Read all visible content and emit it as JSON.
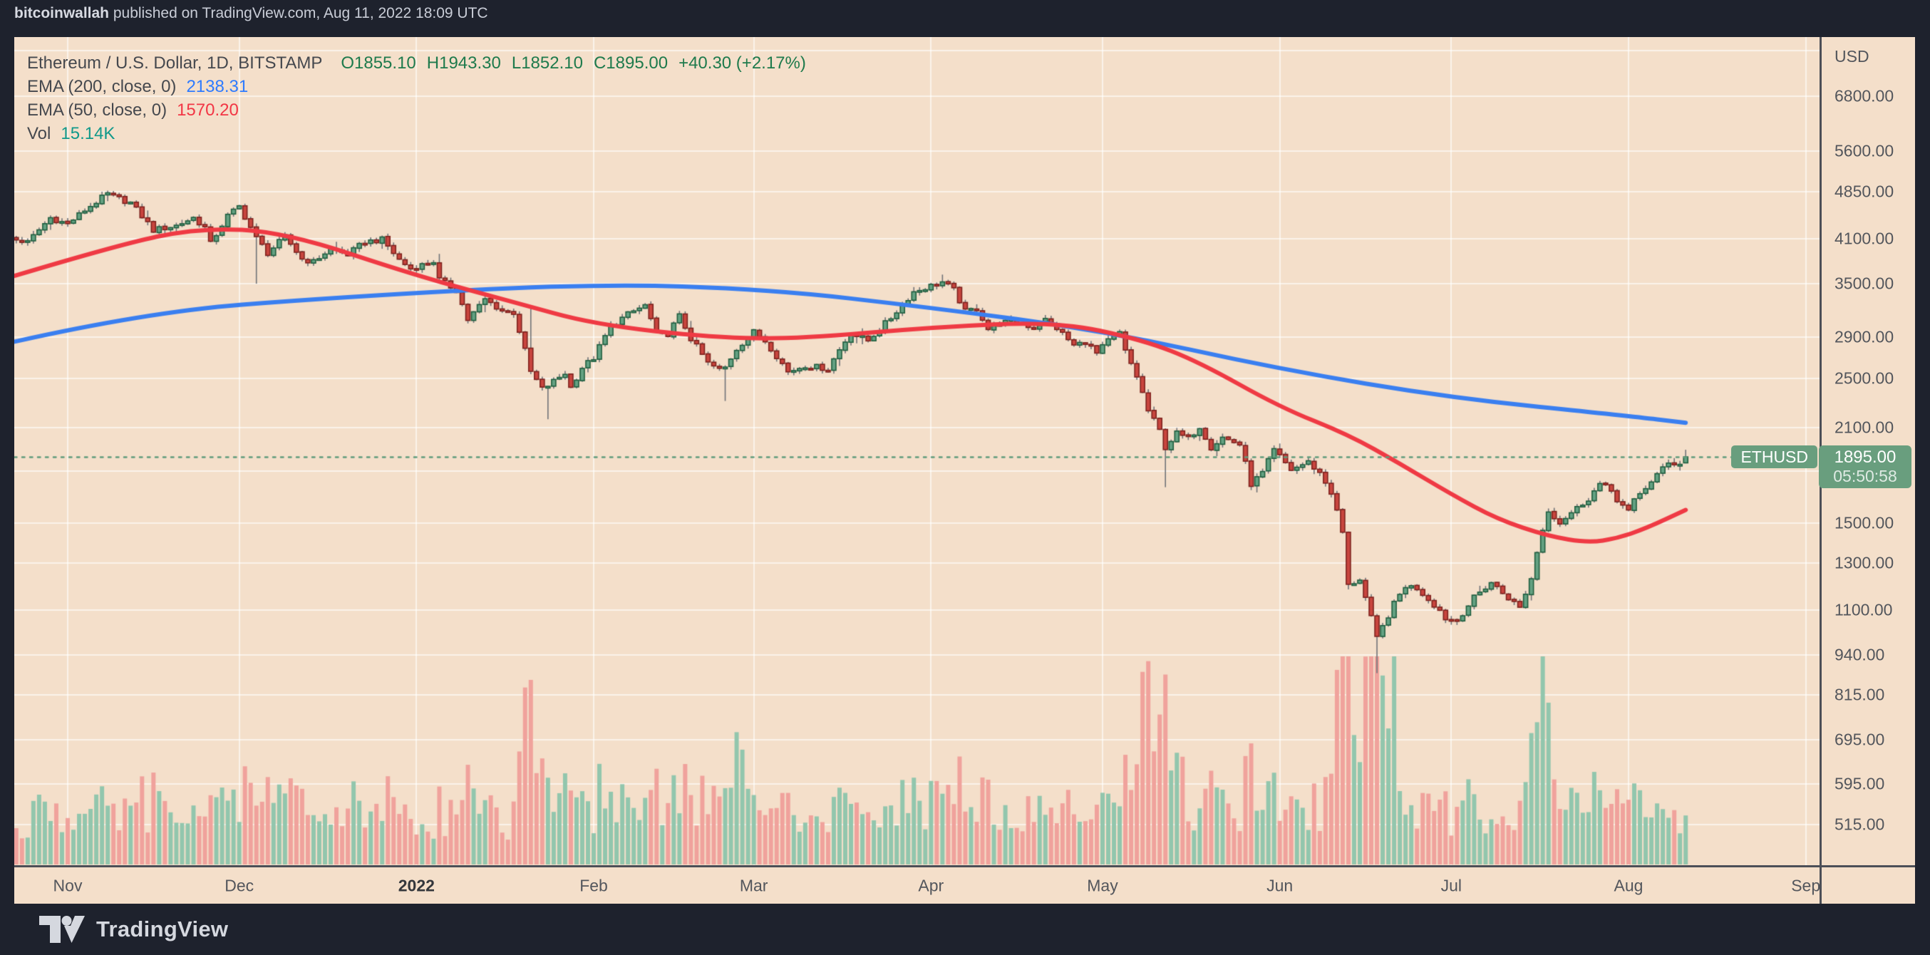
{
  "header": {
    "username": "bitcoinwallah",
    "published_text": " published on TradingView.com, Aug 11, 2022 18:09 UTC"
  },
  "footer": {
    "brand": "TradingView"
  },
  "legend": {
    "title": "Ethereum / U.S. Dollar, 1D, BITSTAMP",
    "ohlc": {
      "o": "O1855.10",
      "h": "H1943.30",
      "l": "L1852.10",
      "c": "C1895.00",
      "chg": "+40.30 (+2.17%)"
    },
    "ema200_label": "EMA (200, close, 0)",
    "ema200_value": "2138.31",
    "ema50_label": "EMA (50, close, 0)",
    "ema50_value": "1570.20",
    "vol_label": "Vol",
    "vol_value": "15.14K"
  },
  "symbol_badge": "ETHUSD",
  "price_scale": {
    "currency": "USD",
    "badge_price": "1895.00",
    "badge_countdown": "05:50:58",
    "ticks": [
      {
        "label": "6800.00",
        "value": 6800
      },
      {
        "label": "5600.00",
        "value": 5600
      },
      {
        "label": "4850.00",
        "value": 4850
      },
      {
        "label": "4100.00",
        "value": 4100
      },
      {
        "label": "3500.00",
        "value": 3500
      },
      {
        "label": "2900.00",
        "value": 2900
      },
      {
        "label": "2500.00",
        "value": 2500
      },
      {
        "label": "2100.00",
        "value": 2100
      },
      {
        "label": "1500.00",
        "value": 1500
      },
      {
        "label": "1300.00",
        "value": 1300
      },
      {
        "label": "1100.00",
        "value": 1100
      },
      {
        "label": "940.00",
        "value": 940
      },
      {
        "label": "815.00",
        "value": 815
      },
      {
        "label": "695.00",
        "value": 695
      },
      {
        "label": "595.00",
        "value": 595
      },
      {
        "label": "515.00",
        "value": 515
      }
    ],
    "unlabeled_gridlines": [
      8000,
      1800
    ]
  },
  "time_scale": {
    "labels": [
      {
        "text": "Nov",
        "day": 12
      },
      {
        "text": "Dec",
        "day": 42
      },
      {
        "text": "2022",
        "day": 73,
        "bold": true
      },
      {
        "text": "Feb",
        "day": 104
      },
      {
        "text": "Mar",
        "day": 132
      },
      {
        "text": "Apr",
        "day": 163
      },
      {
        "text": "May",
        "day": 193
      },
      {
        "text": "Jun",
        "day": 224
      },
      {
        "text": "Jul",
        "day": 254
      },
      {
        "text": "Aug",
        "day": 285
      },
      {
        "text": "Sep",
        "day": 316
      }
    ]
  },
  "chart_data": {
    "type": "candlestick",
    "symbol": "ETHUSD",
    "exchange": "BITSTAMP",
    "timeframe": "1D",
    "title": "Ethereum / U.S. Dollar",
    "log_scale": true,
    "num_days": 296,
    "start_date": "2021-10-20",
    "end_date": "2022-08-11",
    "current": {
      "open": 1855.1,
      "high": 1943.3,
      "low": 1852.1,
      "close": 1895.0,
      "change": 40.3,
      "change_pct": 2.17,
      "volume_display": "15.14K",
      "ema200": 2138.31,
      "ema50": 1570.2,
      "countdown": "05:50:58"
    },
    "close_keypoints": [
      [
        0,
        4170
      ],
      [
        3,
        4090
      ],
      [
        5,
        4050
      ],
      [
        9,
        4420
      ],
      [
        12,
        4320
      ],
      [
        15,
        4540
      ],
      [
        19,
        4810
      ],
      [
        21,
        4730
      ],
      [
        23,
        4660
      ],
      [
        27,
        4230
      ],
      [
        31,
        4300
      ],
      [
        34,
        4420
      ],
      [
        36,
        4270
      ],
      [
        37,
        4030
      ],
      [
        40,
        4450
      ],
      [
        42,
        4600
      ],
      [
        45,
        4110
      ],
      [
        47,
        3900
      ],
      [
        50,
        4130
      ],
      [
        53,
        3820
      ],
      [
        55,
        3780
      ],
      [
        58,
        3960
      ],
      [
        61,
        3880
      ],
      [
        64,
        4060
      ],
      [
        67,
        4090
      ],
      [
        70,
        3810
      ],
      [
        72,
        3690
      ],
      [
        76,
        3790
      ],
      [
        77,
        3550
      ],
      [
        80,
        3420
      ],
      [
        82,
        3080
      ],
      [
        85,
        3310
      ],
      [
        88,
        3180
      ],
      [
        90,
        3160
      ],
      [
        93,
        2560
      ],
      [
        95,
        2410
      ],
      [
        96,
        2440
      ],
      [
        99,
        2550
      ],
      [
        100,
        2420
      ],
      [
        102,
        2600
      ],
      [
        104,
        2690
      ],
      [
        107,
        3010
      ],
      [
        110,
        3140
      ],
      [
        113,
        3240
      ],
      [
        115,
        2930
      ],
      [
        117,
        2930
      ],
      [
        119,
        3120
      ],
      [
        121,
        2880
      ],
      [
        124,
        2640
      ],
      [
        126,
        2580
      ],
      [
        127,
        2600
      ],
      [
        129,
        2780
      ],
      [
        132,
        2950
      ],
      [
        134,
        2860
      ],
      [
        138,
        2560
      ],
      [
        141,
        2620
      ],
      [
        145,
        2590
      ],
      [
        147,
        2770
      ],
      [
        149,
        2940
      ],
      [
        152,
        2860
      ],
      [
        156,
        3100
      ],
      [
        158,
        3250
      ],
      [
        160,
        3400
      ],
      [
        162,
        3450
      ],
      [
        165,
        3520
      ],
      [
        167,
        3420
      ],
      [
        169,
        3170
      ],
      [
        171,
        3210
      ],
      [
        173,
        2980
      ],
      [
        175,
        3050
      ],
      [
        178,
        3060
      ],
      [
        181,
        2990
      ],
      [
        183,
        3080
      ],
      [
        185,
        2990
      ],
      [
        188,
        2810
      ],
      [
        190,
        2850
      ],
      [
        192,
        2730
      ],
      [
        194,
        2860
      ],
      [
        196,
        2940
      ],
      [
        197,
        2750
      ],
      [
        199,
        2520
      ],
      [
        201,
        2230
      ],
      [
        203,
        2080
      ],
      [
        204,
        1960
      ],
      [
        206,
        2060
      ],
      [
        208,
        2020
      ],
      [
        210,
        2110
      ],
      [
        212,
        1960
      ],
      [
        214,
        2030
      ],
      [
        217,
        1980
      ],
      [
        219,
        1720
      ],
      [
        221,
        1790
      ],
      [
        223,
        1940
      ],
      [
        226,
        1810
      ],
      [
        229,
        1860
      ],
      [
        231,
        1790
      ],
      [
        233,
        1670
      ],
      [
        235,
        1450
      ],
      [
        236,
        1200
      ],
      [
        238,
        1230
      ],
      [
        240,
        1070
      ],
      [
        241,
        995
      ],
      [
        243,
        1080
      ],
      [
        244,
        1125
      ],
      [
        246,
        1200
      ],
      [
        248,
        1190
      ],
      [
        250,
        1145
      ],
      [
        252,
        1100
      ],
      [
        253,
        1070
      ],
      [
        255,
        1060
      ],
      [
        258,
        1150
      ],
      [
        261,
        1215
      ],
      [
        263,
        1170
      ],
      [
        266,
        1110
      ],
      [
        268,
        1230
      ],
      [
        269,
        1355
      ],
      [
        271,
        1570
      ],
      [
        273,
        1500
      ],
      [
        274,
        1530
      ],
      [
        276,
        1580
      ],
      [
        278,
        1635
      ],
      [
        280,
        1720
      ],
      [
        282,
        1680
      ],
      [
        283,
        1630
      ],
      [
        285,
        1560
      ],
      [
        286,
        1620
      ],
      [
        288,
        1700
      ],
      [
        290,
        1780
      ],
      [
        292,
        1850
      ],
      [
        294,
        1855
      ],
      [
        295,
        1895
      ]
    ],
    "wick_overrides": {
      "45": {
        "low": 3500
      },
      "77": {
        "high": 3890
      },
      "93": {
        "high": 3210
      },
      "96": {
        "low": 2165
      },
      "127": {
        "low": 2310
      },
      "204": {
        "low": 1702
      },
      "241": {
        "low": 881
      },
      "295": {
        "open": 1855.1,
        "high": 1943.3,
        "low": 1852.1,
        "close": 1895.0
      }
    },
    "ema200_keypoints": [
      [
        0,
        2815
      ],
      [
        25,
        3160
      ],
      [
        60,
        3340
      ],
      [
        104,
        3500
      ],
      [
        135,
        3430
      ],
      [
        163,
        3215
      ],
      [
        193,
        2965
      ],
      [
        224,
        2585
      ],
      [
        254,
        2335
      ],
      [
        285,
        2190
      ],
      [
        295,
        2138
      ]
    ],
    "ema50_keypoints": [
      [
        0,
        3540
      ],
      [
        20,
        4000
      ],
      [
        35,
        4270
      ],
      [
        50,
        4200
      ],
      [
        73,
        3600
      ],
      [
        90,
        3280
      ],
      [
        104,
        3030
      ],
      [
        125,
        2890
      ],
      [
        140,
        2880
      ],
      [
        163,
        3000
      ],
      [
        185,
        3060
      ],
      [
        200,
        2870
      ],
      [
        210,
        2650
      ],
      [
        224,
        2260
      ],
      [
        236,
        2050
      ],
      [
        245,
        1850
      ],
      [
        254,
        1660
      ],
      [
        262,
        1520
      ],
      [
        271,
        1430
      ],
      [
        278,
        1398
      ],
      [
        283,
        1420
      ],
      [
        288,
        1470
      ],
      [
        295,
        1570
      ]
    ],
    "volume_spikes": [
      [
        92,
        99,
        1.5
      ],
      [
        125,
        130,
        1.4
      ],
      [
        160,
        166,
        1.2
      ],
      [
        199,
        207,
        1.8
      ],
      [
        234,
        244,
        2.6
      ],
      [
        268,
        274,
        1.3
      ]
    ],
    "colors": {
      "background": "#1e222d",
      "panel": "#f4dfca",
      "grid": "rgba(255,255,255,0.62)",
      "candle_up": "#64a182",
      "candle_up_border": "#1e5d3e",
      "candle_down": "#c8453e",
      "candle_down_border": "#7e211d",
      "wick": "#6f7277",
      "vol_up": "#92c6ad",
      "vol_down": "#f0a29c",
      "ema200": "#3a7ff0",
      "ema50": "#ef3a44",
      "price_line": "#5f9c7c",
      "badge": "#699e7e"
    }
  }
}
